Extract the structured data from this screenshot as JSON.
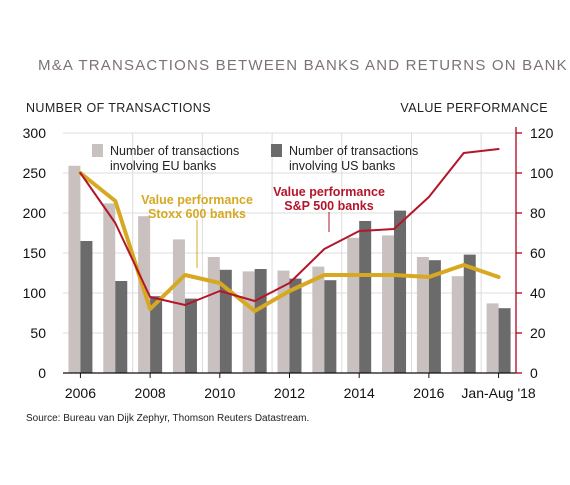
{
  "chart_data": {
    "type": "bar",
    "title": "M&A TRANSACTIONS BETWEEN BANKS AND RETURNS ON BANK SHARES",
    "ylabel_left": "NUMBER OF TRANSACTIONS",
    "ylabel_right": "VALUE PERFORMANCE",
    "ylim_left": [
      0,
      300
    ],
    "ylim_right": [
      0,
      120
    ],
    "yticks_left": [
      0,
      50,
      100,
      150,
      200,
      250,
      300
    ],
    "yticks_right": [
      0,
      20,
      40,
      60,
      80,
      100,
      120
    ],
    "x_tick_labels": [
      "2006",
      "2008",
      "2010",
      "2012",
      "2014",
      "2016",
      "Jan-Aug '18"
    ],
    "categories": [
      "2006",
      "2007",
      "2008",
      "2009",
      "2010",
      "2011",
      "2012",
      "2013",
      "2014",
      "2015",
      "2016",
      "2017",
      "Jan-Aug '18"
    ],
    "grid": true,
    "bar_series": [
      {
        "name_lines": [
          "Number of transactions",
          "involving EU banks"
        ],
        "color": "#c9c1c0",
        "values": [
          259,
          212,
          196,
          167,
          145,
          127,
          128,
          133,
          169,
          172,
          145,
          121,
          87
        ]
      },
      {
        "name_lines": [
          "Number of transactions",
          "involving US banks"
        ],
        "color": "#6b6b6b",
        "values": [
          165,
          115,
          96,
          93,
          129,
          130,
          118,
          116,
          190,
          203,
          141,
          148,
          81
        ]
      }
    ],
    "line_series": [
      {
        "name_lines": [
          "Value performance",
          "Stoxx 600 banks"
        ],
        "color": "#d7a821",
        "values": [
          100,
          86,
          32,
          49,
          45,
          31,
          41,
          49,
          49,
          49,
          48,
          54,
          48
        ]
      },
      {
        "name_lines": [
          "Value performance",
          "S&P 500 banks"
        ],
        "color": "#b3162a",
        "values": [
          100,
          75,
          38,
          34,
          41,
          36,
          45,
          62,
          71,
          72,
          88,
          110,
          112
        ]
      }
    ],
    "source": "Source: Bureau van Dijk Zephyr, Thomson Reuters Datastream."
  }
}
